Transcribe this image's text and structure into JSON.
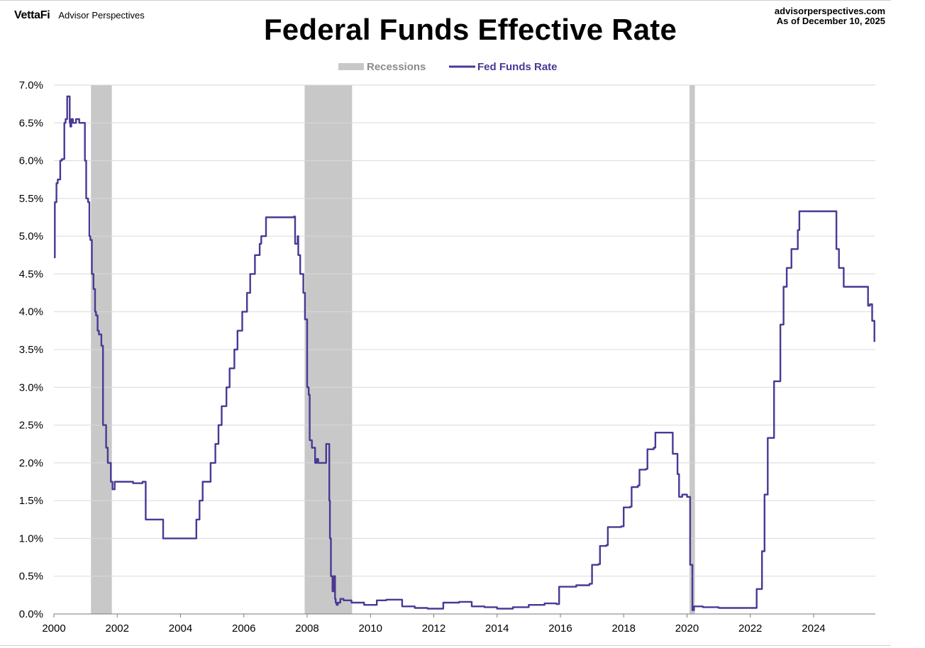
{
  "header": {
    "brand_logo": "VettaFi",
    "brand_name": "Advisor Perspectives",
    "source_site": "advisorperspectives.com",
    "as_of": "As of December 10, 2025"
  },
  "colors": {
    "series": "#4a3894",
    "recession": "#c8c8c8",
    "legend_recession_text": "#8a8a8a",
    "grid": "#d9d9d9"
  },
  "chart_data": {
    "type": "line",
    "title": "Federal Funds Effective Rate",
    "xlabel": "",
    "ylabel": "",
    "xlim": [
      2000,
      2025.95
    ],
    "ylim": [
      0,
      7
    ],
    "grid": true,
    "legend_position": "top-center",
    "x_ticks": [
      2000,
      2002,
      2004,
      2006,
      2008,
      2010,
      2012,
      2014,
      2016,
      2018,
      2020,
      2022,
      2024
    ],
    "y_ticks": [
      0,
      0.5,
      1,
      1.5,
      2,
      2.5,
      3,
      3.5,
      4,
      4.5,
      5,
      5.5,
      6,
      6.5,
      7
    ],
    "x_tick_labels": [
      "2000",
      "2002",
      "2004",
      "2006",
      "2008",
      "2010",
      "2012",
      "2014",
      "2016",
      "2018",
      "2020",
      "2022",
      "2024"
    ],
    "y_tick_labels": [
      "0.0%",
      "0.5%",
      "1.0%",
      "1.5%",
      "2.0%",
      "2.5%",
      "3.0%",
      "3.5%",
      "4.0%",
      "4.5%",
      "5.0%",
      "5.5%",
      "6.0%",
      "6.5%",
      "7.0%"
    ],
    "recessions": [
      {
        "start": 2001.17,
        "end": 2001.83
      },
      {
        "start": 2007.92,
        "end": 2009.42
      },
      {
        "start": 2020.08,
        "end": 2020.25
      }
    ],
    "legend": [
      {
        "name": "Recessions",
        "kind": "band"
      },
      {
        "name": "Fed Funds Rate",
        "kind": "line"
      }
    ],
    "series": [
      {
        "name": "Fed Funds Rate",
        "x": [
          2000.0,
          2000.03,
          2000.08,
          2000.12,
          2000.2,
          2000.25,
          2000.33,
          2000.37,
          2000.42,
          2000.5,
          2000.52,
          2000.55,
          2000.6,
          2000.7,
          2000.8,
          2000.9,
          2000.98,
          2001.02,
          2001.08,
          2001.12,
          2001.15,
          2001.2,
          2001.25,
          2001.3,
          2001.33,
          2001.38,
          2001.42,
          2001.5,
          2001.55,
          2001.6,
          2001.65,
          2001.7,
          2001.75,
          2001.8,
          2001.85,
          2001.92,
          2002.0,
          2002.2,
          2002.5,
          2002.8,
          2002.88,
          2002.9,
          2003.0,
          2003.3,
          2003.45,
          2003.5,
          2003.6,
          2003.8,
          2004.0,
          2004.4,
          2004.5,
          2004.6,
          2004.7,
          2004.8,
          2004.95,
          2005.1,
          2005.2,
          2005.3,
          2005.45,
          2005.55,
          2005.7,
          2005.8,
          2005.95,
          2006.1,
          2006.2,
          2006.35,
          2006.5,
          2006.55,
          2006.7,
          2007.0,
          2007.3,
          2007.58,
          2007.62,
          2007.7,
          2007.72,
          2007.78,
          2007.83,
          2007.88,
          2007.93,
          2008.0,
          2008.05,
          2008.08,
          2008.15,
          2008.25,
          2008.3,
          2008.35,
          2008.45,
          2008.6,
          2008.7,
          2008.72,
          2008.75,
          2008.8,
          2008.85,
          2008.88,
          2008.9,
          2008.93,
          2008.97,
          2009.05,
          2009.15,
          2009.4,
          2009.8,
          2010.2,
          2010.5,
          2011.0,
          2011.4,
          2011.8,
          2012.3,
          2012.8,
          2013.2,
          2013.6,
          2014.0,
          2014.5,
          2015.0,
          2015.5,
          2015.88,
          2015.96,
          2016.5,
          2016.92,
          2017.0,
          2017.2,
          2017.25,
          2017.45,
          2017.5,
          2017.92,
          2018.0,
          2018.2,
          2018.25,
          2018.45,
          2018.5,
          2018.7,
          2018.75,
          2018.95,
          2019.0,
          2019.5,
          2019.55,
          2019.7,
          2019.75,
          2019.82,
          2019.85,
          2020.0,
          2020.1,
          2020.17,
          2020.22,
          2020.5,
          2021.0,
          2021.5,
          2022.0,
          2022.2,
          2022.27,
          2022.37,
          2022.45,
          2022.55,
          2022.62,
          2022.75,
          2022.85,
          2022.95,
          2023.05,
          2023.15,
          2023.3,
          2023.5,
          2023.55,
          2024.5,
          2024.72,
          2024.8,
          2024.87,
          2024.95,
          2025.0,
          2025.25,
          2025.5,
          2025.72,
          2025.78,
          2025.85,
          2025.88,
          2025.92
        ],
        "values": [
          4.72,
          5.45,
          5.7,
          5.75,
          6.0,
          6.02,
          6.5,
          6.55,
          6.85,
          6.5,
          6.45,
          6.55,
          6.5,
          6.55,
          6.5,
          6.5,
          6.0,
          5.5,
          5.45,
          5.0,
          4.95,
          4.5,
          4.3,
          4.0,
          3.95,
          3.75,
          3.7,
          3.55,
          2.5,
          2.5,
          2.2,
          2.0,
          2.0,
          1.75,
          1.65,
          1.75,
          1.75,
          1.75,
          1.73,
          1.75,
          1.75,
          1.25,
          1.25,
          1.25,
          1.0,
          1.0,
          1.0,
          1.0,
          1.0,
          1.0,
          1.25,
          1.5,
          1.75,
          1.75,
          2.0,
          2.25,
          2.5,
          2.75,
          3.0,
          3.25,
          3.5,
          3.75,
          4.0,
          4.25,
          4.5,
          4.75,
          4.9,
          5.0,
          5.25,
          5.25,
          5.25,
          5.26,
          4.9,
          5.0,
          4.75,
          4.5,
          4.5,
          4.25,
          3.9,
          3.0,
          2.9,
          2.3,
          2.2,
          2.0,
          2.05,
          2.0,
          2.0,
          2.25,
          1.5,
          1.0,
          0.5,
          0.3,
          0.5,
          0.2,
          0.15,
          0.12,
          0.15,
          0.2,
          0.18,
          0.15,
          0.12,
          0.18,
          0.19,
          0.1,
          0.08,
          0.07,
          0.15,
          0.16,
          0.1,
          0.09,
          0.07,
          0.09,
          0.12,
          0.14,
          0.13,
          0.36,
          0.38,
          0.4,
          0.65,
          0.66,
          0.9,
          0.91,
          1.15,
          1.16,
          1.41,
          1.42,
          1.68,
          1.7,
          1.91,
          1.92,
          2.18,
          2.2,
          2.4,
          2.4,
          2.12,
          1.85,
          1.55,
          1.55,
          1.58,
          1.55,
          0.65,
          0.05,
          0.1,
          0.09,
          0.08,
          0.08,
          0.08,
          0.33,
          0.33,
          0.83,
          1.58,
          2.33,
          2.33,
          3.08,
          3.08,
          3.83,
          4.33,
          4.58,
          4.83,
          5.08,
          5.33,
          5.33,
          4.83,
          4.58,
          4.58,
          4.33,
          4.33,
          4.33,
          4.33,
          4.08,
          4.1,
          3.88,
          3.88,
          3.6
        ]
      }
    ]
  }
}
